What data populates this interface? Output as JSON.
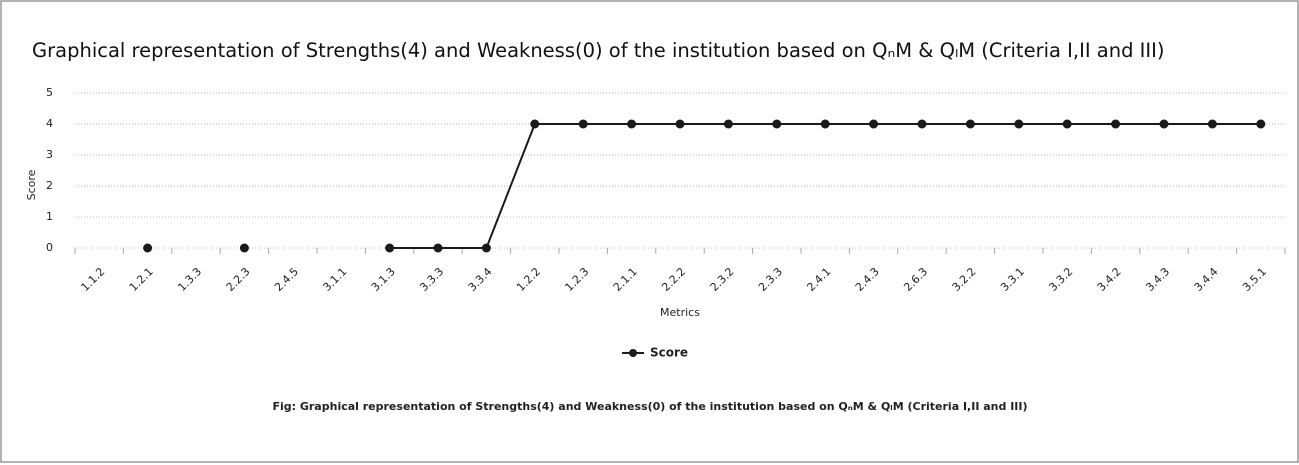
{
  "chart_data": {
    "type": "line",
    "title": "Graphical representation of Strengths(4) and Weakness(0) of the institution based on QₙM & QₗM (Criteria I,II and III)",
    "x_label": "Metrics",
    "y_label": "Score",
    "caption": "Fig: Graphical representation of Strengths(4) and Weakness(0) of the institution based on QₙM & QₗM (Criteria I,II and III)",
    "categories": [
      "1.1.2",
      "1.2.1",
      "1.3.3",
      "2.2.3",
      "2.4.5",
      "3.1.1",
      "3.1.3",
      "3.3.3",
      "3.3.4",
      "1.2.2",
      "1.2.3",
      "2.1.1",
      "2.2.2",
      "2.3.2",
      "2.3.3",
      "2.4.1",
      "2.4.3",
      "2.6.3",
      "3.2.2",
      "3.3.1",
      "3.3.2",
      "3.4.2",
      "3.4.3",
      "3.4.4",
      "3.5.1"
    ],
    "series": [
      {
        "name": "Score",
        "color": "#1a1a1a",
        "values": [
          null,
          0,
          null,
          0,
          null,
          null,
          0,
          0,
          0,
          4,
          4,
          4,
          4,
          4,
          4,
          4,
          4,
          4,
          4,
          4,
          4,
          4,
          4,
          4,
          4
        ]
      }
    ],
    "ylim": [
      0,
      5
    ],
    "yticks": [
      0,
      1,
      2,
      3,
      4,
      5
    ],
    "grid": true,
    "legend": "bottom"
  }
}
